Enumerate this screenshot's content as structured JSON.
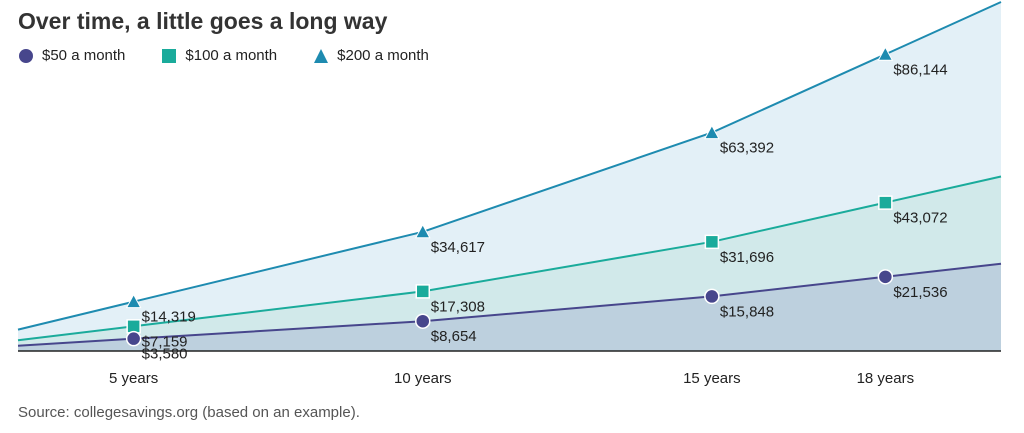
{
  "chart_data": {
    "type": "area",
    "title": "Over time, a little goes a long way",
    "categories": [
      "5 years",
      "10 years",
      "15 years",
      "18 years"
    ],
    "x": [
      5,
      10,
      15,
      18
    ],
    "xlim": [
      3,
      20
    ],
    "ylim": [
      0,
      99000
    ],
    "grid": false,
    "legend_position": "top-left",
    "series": [
      {
        "name": "$200 a month",
        "marker": "triangle",
        "color": "#1e8bb0",
        "fill": "#e3f0f7",
        "values": [
          14319,
          34617,
          63392,
          86144
        ],
        "labels": [
          "$14,319",
          "$34,617",
          "$63,392",
          "$86,144"
        ]
      },
      {
        "name": "$100 a month",
        "marker": "square",
        "color": "#1aab9b",
        "fill": "#d1e9ea",
        "values": [
          7159,
          17308,
          31696,
          43072
        ],
        "labels": [
          "$7,159",
          "$17,308",
          "$31,696",
          "$43,072"
        ]
      },
      {
        "name": "$50 a month",
        "marker": "circle",
        "color": "#47468c",
        "fill": "#bdd0de",
        "values": [
          3580,
          8654,
          15848,
          21536
        ],
        "labels": [
          "$3,580",
          "$8,654",
          "$15,848",
          "$21,536"
        ]
      }
    ],
    "source": "Source: collegesavings.org (based on an example)."
  }
}
